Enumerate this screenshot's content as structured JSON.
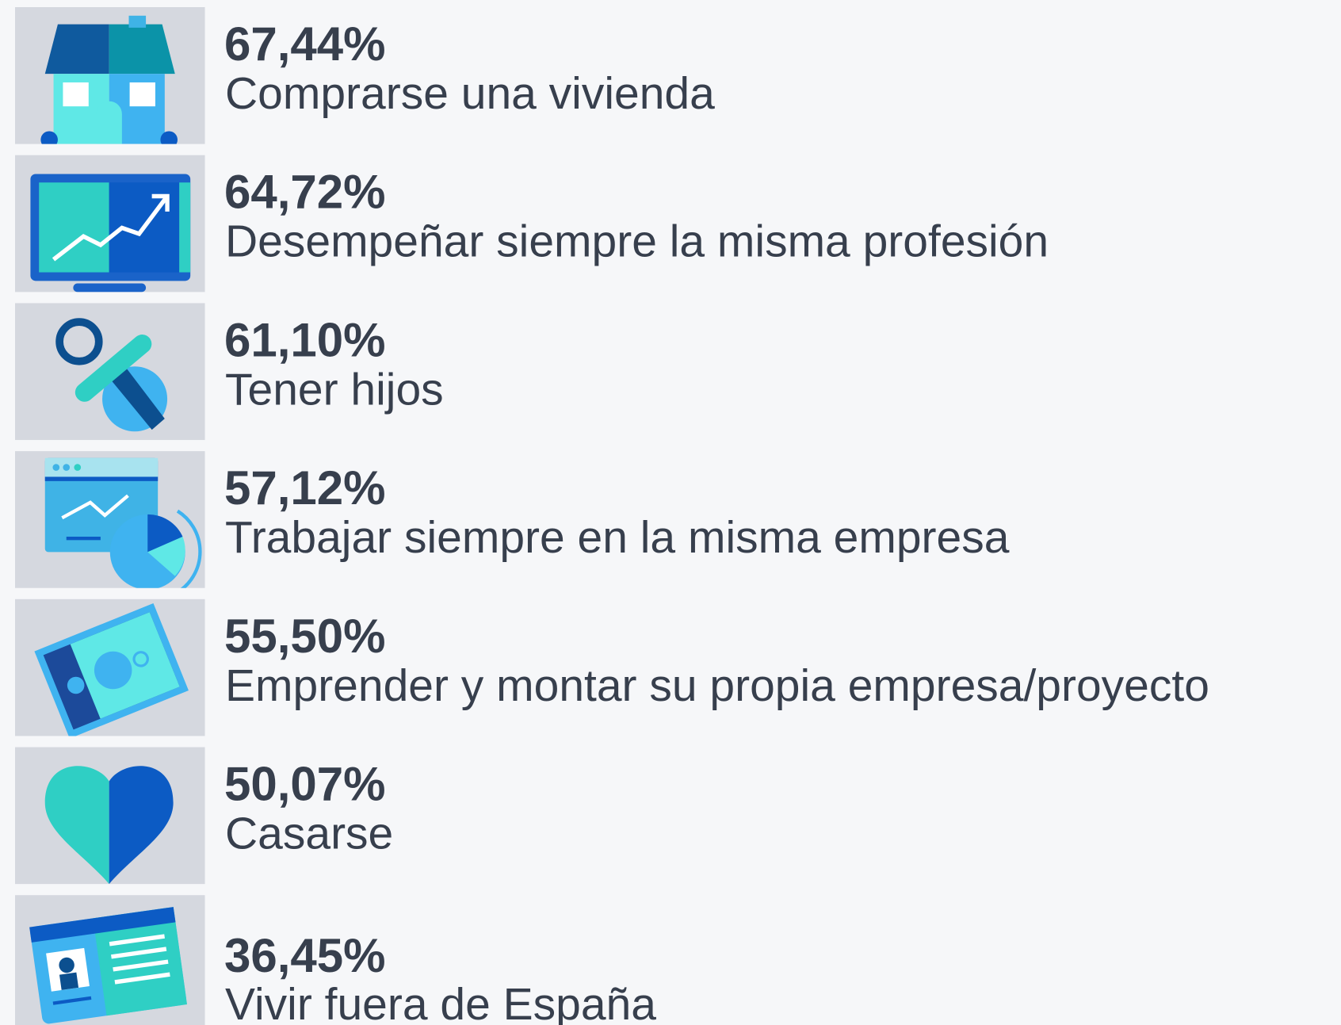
{
  "items": [
    {
      "value": "67,44%",
      "label": "Comprarse una vivienda"
    },
    {
      "value": "64,72%",
      "label": "Desempeñar siempre la misma profesión"
    },
    {
      "value": "61,10%",
      "label": "Tener hijos"
    },
    {
      "value": "57,12%",
      "label": "Trabajar siempre en la misma empresa"
    },
    {
      "value": "55,50%",
      "label": "Emprender y montar su propia empresa/proyecto"
    },
    {
      "value": "50,07%",
      "label": "Casarse"
    },
    {
      "value": "36,45%",
      "label": "Vivir fuera de España"
    }
  ]
}
